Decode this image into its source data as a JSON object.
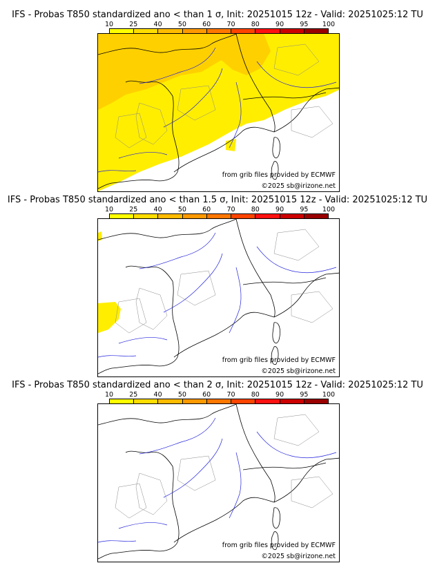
{
  "colors": {
    "scale": [
      "#ffff00",
      "#ffdd00",
      "#ffbb00",
      "#ff9900",
      "#ff7700",
      "#ff4400",
      "#ff1111",
      "#cc0000",
      "#990000",
      "#660000"
    ],
    "anomaly_light": "#ffee00",
    "anomaly_strong": "#ffd000",
    "river": "#2222dd",
    "border": "#000000",
    "admin": "#888888"
  },
  "colorbar": {
    "ticks": [
      "10",
      "25",
      "40",
      "50",
      "60",
      "70",
      "80",
      "90",
      "95",
      "100"
    ]
  },
  "panels": [
    {
      "title": "IFS - Probas T850  standardized ano < than 1 σ, Init: 20251015 12z - Valid: 20251025:12 TU",
      "credit_source": "from grib files provided by ECMWF",
      "credit_copyright": "©2025 sb@irizone.net"
    },
    {
      "title": "IFS - Probas T850  standardized ano < than 1.5 σ, Init: 20251015 12z - Valid: 20251025:12 TU",
      "credit_source": "from grib files provided by ECMWF",
      "credit_copyright": "©2025 sb@irizone.net"
    },
    {
      "title": "IFS - Probas T850  standardized ano < than 2 σ, Init: 20251015 12z - Valid: 20251025:12 TU",
      "credit_source": "from grib files provided by ECMWF",
      "credit_copyright": "©2025 sb@irizone.net"
    }
  ]
}
